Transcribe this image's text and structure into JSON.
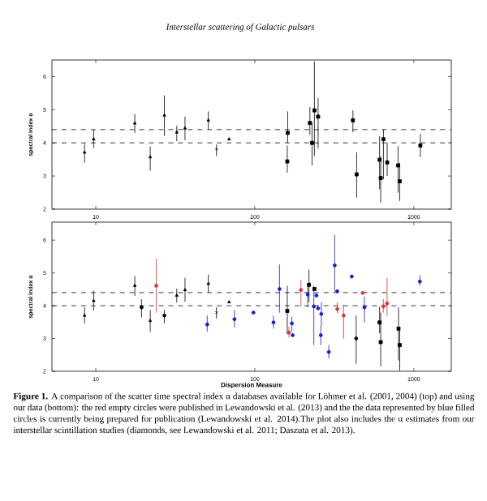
{
  "chart_data": [
    {
      "type": "scatter",
      "title": "Interstellar scattering of Galactic pulsars",
      "ylabel": "spectral index α",
      "log": "x",
      "xlim": [
        5.3,
        1720
      ],
      "ylim": [
        2,
        6.5
      ],
      "xticks": [
        10,
        100,
        1000
      ],
      "yticks": [
        2,
        3,
        4,
        5,
        6
      ],
      "grid": false,
      "ref_lines": [
        {
          "axis": "y",
          "value": 4.4,
          "line_style": "dashed",
          "color": "#000000"
        },
        {
          "axis": "y",
          "value": 4.0,
          "line_style": "dashed",
          "color": "#000000"
        }
      ],
      "series": [
        {
          "color": "#000000",
          "marker": "triangle",
          "x": [
            8.5,
            9.7,
            17.6,
            22,
            32.3
          ],
          "values": [
            3.71,
            4.11,
            4.59,
            3.57,
            4.32
          ],
          "errors": [
            [
              3.4,
              3.97
            ],
            [
              3.84,
              4.4
            ],
            [
              4.3,
              4.87
            ],
            [
              3.16,
              3.89
            ],
            [
              4.05,
              4.52
            ]
          ]
        },
        {
          "color": "#000000",
          "marker": "triangle",
          "x": [
            27,
            36.4,
            51,
            68.9
          ],
          "values": [
            4.83,
            4.44,
            4.68,
            4.11
          ],
          "errors": [
            [
              4.21,
              5.43
            ],
            [
              4.08,
              4.79
            ],
            [
              4.4,
              4.95
            ],
            null
          ]
        },
        {
          "color": "#000000",
          "marker": "cross",
          "x": [
            57.4
          ],
          "values": [
            3.81
          ],
          "errors": [
            [
              3.6,
              3.95
            ]
          ]
        },
        {
          "color": "#000000",
          "marker": "square",
          "x": [
            160,
            161,
            222,
            229,
            237,
            250,
            414
          ],
          "values": [
            3.44,
            4.3,
            4.6,
            4.0,
            4.98,
            4.79,
            4.68
          ],
          "errors": [
            [
              3.1,
              3.92
            ],
            [
              4.0,
              4.95
            ],
            [
              4.24,
              5.08
            ],
            [
              3.32,
              4.62
            ],
            [
              3.6,
              6.46
            ],
            [
              3.84,
              5.35
            ],
            [
              4.32,
              4.98
            ]
          ]
        },
        {
          "color": "#000000",
          "marker": "square",
          "x": [
            437,
            609,
            644,
            619,
            680,
            796,
            815,
            1099
          ],
          "values": [
            3.05,
            3.49,
            4.11,
            2.94,
            3.41,
            3.32,
            2.84,
            3.92
          ],
          "errors": [
            [
              2.35,
              3.71
            ],
            [
              2.6,
              4.2
            ],
            [
              2.9,
              4.4
            ],
            [
              2.2,
              3.6
            ],
            [
              3.0,
              4.0
            ],
            [
              2.5,
              3.9
            ],
            [
              2.25,
              3.4
            ],
            [
              3.57,
              4.27
            ]
          ]
        }
      ]
    },
    {
      "type": "scatter",
      "xlabel": "Dispersion Measure",
      "ylabel": "spectral index α",
      "log": "x",
      "xlim": [
        5.3,
        1720
      ],
      "ylim": [
        2,
        6.55
      ],
      "xticks": [
        10,
        100,
        1000
      ],
      "yticks": [
        2,
        3,
        4,
        5,
        6
      ],
      "grid": false,
      "ref_lines": [
        {
          "axis": "y",
          "value": 4.4,
          "line_style": "dashed",
          "color": "#000000"
        },
        {
          "axis": "y",
          "value": 4.0,
          "line_style": "dashed",
          "color": "#000000"
        }
      ],
      "annotations": [
        "**Figure 1.** A comparison of the scatter time spectral index α databases available for Löhmer et al. (2001, 2004) (top) and using our data (bottom): the red empty circles were published in Lewandowski et al. (2013) and the the data represented by blue filled circles is currently being prepared for publication (Lewandowski et al. 2014).The plot also includes the α estimates from our interstellar scintillation studies (diamonds, see Lewandowski et al. 2011; Daszuta et al. 2013)."
      ],
      "series": [
        {
          "color": "#000000",
          "marker": "triangle",
          "x": [
            8.5,
            9.7,
            17.6,
            22,
            32.3
          ],
          "values": [
            3.7,
            4.15,
            4.61,
            3.54,
            4.31
          ],
          "errors": [
            [
              3.46,
              3.95
            ],
            [
              3.85,
              4.46
            ],
            [
              4.3,
              4.9
            ],
            [
              3.2,
              3.87
            ],
            [
              4.1,
              4.52
            ]
          ]
        },
        {
          "color": "#000000",
          "marker": "triangle",
          "x": [
            36.4,
            51,
            68.9
          ],
          "values": [
            4.48,
            4.67,
            4.11
          ],
          "errors": [
            [
              4.12,
              4.85
            ],
            [
              4.4,
              4.95
            ],
            null
          ]
        },
        {
          "color": "#000000",
          "marker": "cross",
          "x": [
            57.4
          ],
          "values": [
            3.79
          ],
          "errors": [
            [
              3.61,
              3.95
            ]
          ]
        },
        {
          "color": "#000000",
          "marker": "circle",
          "x": [
            19.4,
            27,
            434
          ],
          "values": [
            3.95,
            3.7,
            3.0
          ],
          "errors": [
            [
              3.64,
              4.2
            ],
            [
              3.46,
              3.87
            ],
            [
              2.23,
              3.7
            ]
          ]
        },
        {
          "color": "#e03030",
          "marker": "circle",
          "x": [
            24,
            164,
            195,
            330,
            362,
            477,
            643,
            679
          ],
          "values": [
            4.61,
            3.18,
            4.48,
            3.9,
            3.7,
            4.39,
            3.98,
            4.07
          ],
          "errors": [
            [
              3.79,
              5.43
            ],
            [
              3.03,
              3.36
            ],
            [
              3.97,
              4.79
            ],
            [
              3.77,
              4.1
            ],
            [
              3.0,
              4.03
            ],
            null,
            [
              3.79,
              4.2
            ],
            [
              3.69,
              4.85
            ]
          ]
        },
        {
          "color": "#1a1acc",
          "marker": "circle",
          "x": [
            50.2,
            74.5,
            98,
            131,
            143,
            171,
            173,
            215,
            235,
            244,
            250,
            262,
            260,
            292,
            318,
            330,
            407,
            489,
            1091
          ],
          "values": [
            3.43,
            3.59,
            3.79,
            3.49,
            4.51,
            3.46,
            3.1,
            4.34,
            3.98,
            4.31,
            3.92,
            3.75,
            3.1,
            2.59,
            5.23,
            4.44,
            4.89,
            3.95,
            4.74
          ],
          "errors": [
            [
              3.21,
              3.7
            ],
            [
              3.33,
              3.87
            ],
            null,
            [
              3.3,
              3.7
            ],
            [
              3.79,
              5.26
            ],
            [
              3.21,
              3.66
            ],
            null,
            [
              3.95,
              4.61
            ],
            [
              2.8,
              4.61
            ],
            null,
            null,
            [
              3.38,
              4.11
            ],
            [
              2.8,
              3.38
            ],
            [
              2.39,
              2.8
            ],
            [
              4.44,
              6.16
            ],
            null,
            null,
            [
              3.49,
              4.28
            ],
            [
              4.61,
              4.93
            ]
          ]
        },
        {
          "color": "#000000",
          "marker": "square",
          "x": [
            160,
            219,
            237
          ],
          "values": [
            3.84,
            4.64,
            4.51
          ],
          "errors": [
            [
              3.13,
              4.61
            ],
            [
              4.11,
              5.1
            ],
            null
          ]
        },
        {
          "color": "#000000",
          "marker": "square",
          "x": [
            609,
            619,
            801,
            815
          ],
          "values": [
            3.49,
            2.89,
            3.3,
            2.8
          ],
          "errors": [
            [
              3.16,
              3.97
            ],
            [
              2.15,
              3.79
            ],
            [
              2.33,
              3.95
            ],
            [
              2.02,
              3.26
            ]
          ]
        }
      ]
    }
  ]
}
